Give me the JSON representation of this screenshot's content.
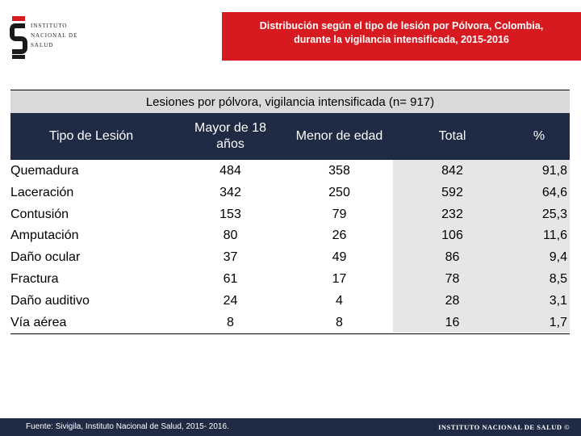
{
  "logo": {
    "line1": "INSTITUTO",
    "line2": "NACIONAL DE",
    "line3": "SALUD"
  },
  "banner": {
    "line1": "Distribución según el tipo de lesión por Pólvora, Colombia,",
    "line2": "durante la vigilancia intensificada, 2015-2016"
  },
  "table": {
    "caption": "Lesiones por pólvora, vigilancia intensificada (n= 917)",
    "headers": {
      "type": "Tipo de Lesión",
      "adult_1": "Mayor de 18",
      "adult_2": "años",
      "minor": "Menor de edad",
      "total": "Total",
      "pct": "%"
    },
    "rows": [
      {
        "type": "Quemadura",
        "adult": "484",
        "minor": "358",
        "total": "842",
        "pct": "91,8"
      },
      {
        "type": "Laceración",
        "adult": "342",
        "minor": "250",
        "total": "592",
        "pct": "64,6"
      },
      {
        "type": "Contusión",
        "adult": "153",
        "minor": "79",
        "total": "232",
        "pct": "25,3"
      },
      {
        "type": "Amputación",
        "adult": "80",
        "minor": "26",
        "total": "106",
        "pct": "11,6"
      },
      {
        "type": "Daño ocular",
        "adult": "37",
        "minor": "49",
        "total": "86",
        "pct": "9,4"
      },
      {
        "type": "Fractura",
        "adult": "61",
        "minor": "17",
        "total": "78",
        "pct": "8,5"
      },
      {
        "type": "Daño auditivo",
        "adult": "24",
        "minor": "4",
        "total": "28",
        "pct": "3,1"
      },
      {
        "type": "Vía aérea",
        "adult": "8",
        "minor": "8",
        "total": "16",
        "pct": "1,7"
      }
    ]
  },
  "footer": {
    "source": "Fuente: Sivigila, Instituto Nacional de Salud, 2015- 2016.",
    "brand": "INSTITUTO NACIONAL DE SALUD ©"
  },
  "colors": {
    "banner": "#d71920",
    "header": "#1f2a44",
    "caption": "#d9d9d9",
    "total_shade": "#e6e6e6"
  }
}
